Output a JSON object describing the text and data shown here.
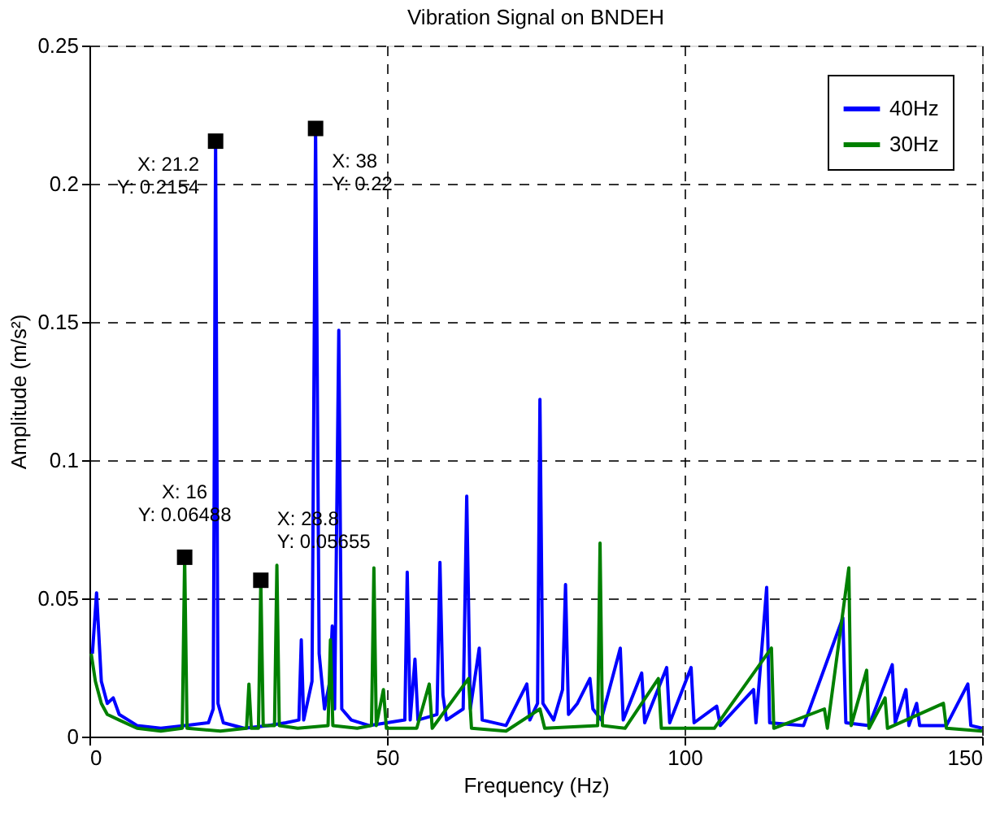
{
  "chart_data": {
    "type": "line",
    "title": "Vibration Signal on BNDEH",
    "xlabel": "Frequency (Hz)",
    "ylabel": "Amplitude (m/s²)",
    "xlim": [
      0,
      150
    ],
    "xticks": [
      0,
      50,
      100,
      150
    ],
    "ylim": [
      0,
      0.25
    ],
    "yticks": [
      0,
      0.05,
      0.1,
      0.15,
      0.2,
      0.25
    ],
    "grid": true,
    "legend": "top right",
    "line_style": "solid",
    "series": [
      {
        "name": "40Hz",
        "color": "#0000ff",
        "x": [
          0.5,
          1.2,
          2,
          3,
          4,
          5,
          8,
          12,
          16,
          20,
          20.8,
          21.2,
          21.6,
          22.5,
          26,
          30,
          33,
          35.2,
          35.6,
          36,
          37.4,
          38,
          38.6,
          39.5,
          40.4,
          40.8,
          41.2,
          41.9,
          42.4,
          44,
          47,
          50,
          53,
          53.4,
          53.9,
          54.7,
          55.2,
          58.4,
          58.9,
          59.4,
          60,
          62.8,
          63.4,
          64,
          65.5,
          66,
          70,
          73.5,
          74,
          75.3,
          75.7,
          76.2,
          78,
          79.5,
          80,
          80.5,
          82,
          84.1,
          84.6,
          86,
          89.2,
          89.7,
          92.8,
          93.3,
          97,
          97.5,
          101.1,
          101.6,
          105.4,
          106,
          111.6,
          112,
          113.8,
          114.3,
          120,
          126.6,
          127.1,
          131,
          134.9,
          135.4,
          137.2,
          137.7,
          139,
          139.5,
          144,
          147.6,
          148.1,
          150
        ],
        "values": [
          0.03,
          0.052,
          0.02,
          0.012,
          0.014,
          0.008,
          0.004,
          0.003,
          0.004,
          0.005,
          0.01,
          0.2154,
          0.012,
          0.005,
          0.003,
          0.004,
          0.005,
          0.006,
          0.035,
          0.006,
          0.02,
          0.22,
          0.03,
          0.01,
          0.02,
          0.04,
          0.01,
          0.147,
          0.01,
          0.006,
          0.004,
          0.005,
          0.006,
          0.0595,
          0.006,
          0.028,
          0.006,
          0.008,
          0.063,
          0.015,
          0.006,
          0.01,
          0.087,
          0.01,
          0.032,
          0.006,
          0.004,
          0.019,
          0.006,
          0.012,
          0.122,
          0.012,
          0.006,
          0.017,
          0.055,
          0.008,
          0.012,
          0.021,
          0.01,
          0.006,
          0.032,
          0.006,
          0.023,
          0.005,
          0.025,
          0.005,
          0.025,
          0.005,
          0.011,
          0.004,
          0.017,
          0.005,
          0.054,
          0.005,
          0.004,
          0.043,
          0.005,
          0.004,
          0.026,
          0.005,
          0.017,
          0.004,
          0.012,
          0.004,
          0.004,
          0.019,
          0.004,
          0.003
        ]
      },
      {
        "name": "30Hz",
        "color": "#008000",
        "x": [
          0.3,
          1,
          2,
          3,
          5,
          8,
          12,
          15.6,
          16,
          16.4,
          22,
          26.4,
          26.8,
          27.2,
          28.4,
          28.8,
          29.2,
          31.1,
          31.5,
          31.9,
          35,
          40.1,
          40.5,
          40.9,
          45,
          47.4,
          47.8,
          48.2,
          49.4,
          49.9,
          55,
          57.1,
          57.6,
          63.7,
          64.2,
          70,
          75.7,
          76.5,
          85.4,
          85.8,
          86.2,
          90,
          95.6,
          96.1,
          105,
          114.6,
          115,
          123.5,
          124,
          127.6,
          128,
          130.6,
          131,
          133.7,
          134.1,
          143.5,
          144,
          150
        ],
        "values": [
          0.03,
          0.02,
          0.012,
          0.008,
          0.006,
          0.003,
          0.002,
          0.003,
          0.06488,
          0.003,
          0.002,
          0.003,
          0.019,
          0.003,
          0.003,
          0.05655,
          0.004,
          0.004,
          0.062,
          0.004,
          0.003,
          0.004,
          0.035,
          0.004,
          0.003,
          0.004,
          0.061,
          0.004,
          0.017,
          0.003,
          0.003,
          0.019,
          0.003,
          0.021,
          0.003,
          0.002,
          0.01,
          0.003,
          0.004,
          0.07,
          0.004,
          0.003,
          0.021,
          0.003,
          0.003,
          0.032,
          0.003,
          0.01,
          0.003,
          0.061,
          0.004,
          0.024,
          0.003,
          0.014,
          0.003,
          0.012,
          0.003,
          0.002
        ]
      }
    ],
    "annotations": [
      {
        "text": "X: 21.2\nY: 0.2154",
        "x": 21.2,
        "y": 0.2154
      },
      {
        "text": "X: 38\nY: 0.22",
        "x": 38,
        "y": 0.22
      },
      {
        "text": "X: 16\nY: 0.06488",
        "x": 16,
        "y": 0.06488
      },
      {
        "text": "X: 28.8\nY: 0.05655",
        "x": 28.8,
        "y": 0.05655
      }
    ]
  }
}
